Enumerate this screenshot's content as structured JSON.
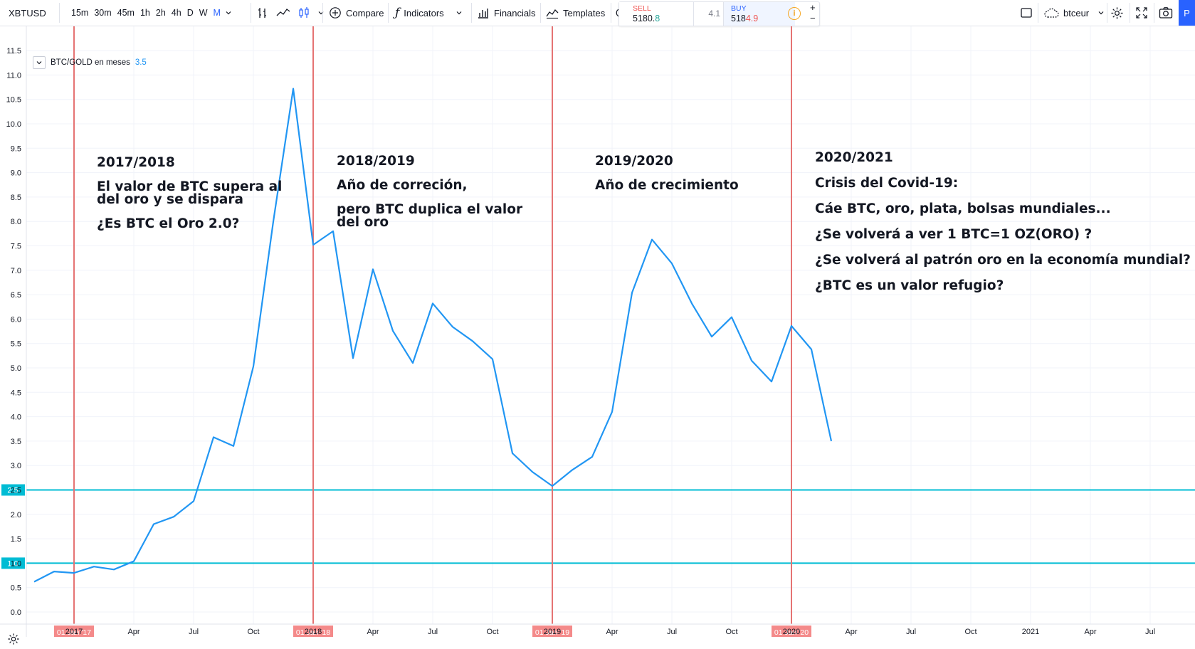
{
  "toolbar": {
    "symbol": "XBTUSD",
    "intervals": [
      "15m",
      "30m",
      "45m",
      "1h",
      "2h",
      "4h",
      "D",
      "W",
      "M"
    ],
    "active_interval": "M",
    "compare_label": "Compare",
    "indicators_label": "Indicators",
    "financials_label": "Financials",
    "templates_label": "Templates",
    "sell_label": "SELL",
    "sell_price_main": "5180.",
    "sell_price_frac": "8",
    "spread": "4.1",
    "buy_label": "BUY",
    "buy_price_main": "518",
    "buy_price_frac": "4.9",
    "plus": "+",
    "minus": "−",
    "layout_name": "btceur",
    "publish_label": "P",
    "colors": {
      "sell": "#ef5350",
      "buy": "#2962ff",
      "accent": "#2962ff",
      "warning": "#f5a623"
    }
  },
  "legend": {
    "title": "BTC/GOLD en meses",
    "value": "3.5",
    "value_color": "#2196f3"
  },
  "annotations": [
    {
      "title": "2017/2018",
      "lines": [
        "El valor de BTC supera al",
        "del oro y se dispara",
        "¿Es BTC el Oro 2.0?"
      ]
    },
    {
      "title": "2018/2019",
      "lines": [
        "Año de correción,",
        "pero BTC duplica el valor",
        "del oro"
      ]
    },
    {
      "title": "2019/2020",
      "lines": [
        "Año de crecimiento"
      ]
    },
    {
      "title": "2020/2021",
      "lines": [
        "Crisis del Covid-19:",
        "Cáe BTC, oro, plata, bolsas mundiales...",
        "¿Se volverá a ver 1 BTC=1 OZ(ORO) ?",
        "¿Se volverá al patrón oro en la economía mundial?",
        "¿BTC es un valor refugio?"
      ]
    }
  ],
  "chart_data": {
    "type": "line",
    "series": [
      {
        "name": "BTC/GOLD en meses",
        "color": "#2196f3",
        "x": [
          "2016-11",
          "2016-12",
          "2017-01",
          "2017-02",
          "2017-03",
          "2017-04",
          "2017-05",
          "2017-06",
          "2017-07",
          "2017-08",
          "2017-09",
          "2017-10",
          "2017-11",
          "2017-12",
          "2018-01",
          "2018-02",
          "2018-03",
          "2018-04",
          "2018-05",
          "2018-06",
          "2018-07",
          "2018-08",
          "2018-09",
          "2018-10",
          "2018-11",
          "2018-12",
          "2019-01",
          "2019-02",
          "2019-03",
          "2019-04",
          "2019-05",
          "2019-06",
          "2019-07",
          "2019-08",
          "2019-09",
          "2019-10",
          "2019-11",
          "2019-12",
          "2020-01",
          "2020-02",
          "2020-03"
        ],
        "values": [
          0.62,
          0.83,
          0.8,
          0.93,
          0.87,
          1.04,
          1.8,
          1.95,
          2.27,
          3.58,
          3.4,
          5.03,
          8.0,
          10.72,
          7.52,
          7.8,
          5.2,
          7.02,
          5.76,
          5.1,
          6.32,
          5.84,
          5.55,
          5.18,
          3.25,
          2.87,
          2.58,
          2.91,
          3.18,
          4.1,
          6.54,
          7.63,
          7.14,
          6.32,
          5.64,
          6.04,
          5.15,
          4.72,
          5.86,
          5.38,
          3.5
        ]
      }
    ],
    "horizontal_lines": [
      {
        "value": 2.5,
        "label": "2.5",
        "color": "#00bcd4"
      },
      {
        "value": 1.0,
        "label": "1.0",
        "color": "#00bcd4"
      }
    ],
    "vertical_markers": [
      {
        "date": "2017-01",
        "label": "01 Jan '17",
        "color": "#e57373"
      },
      {
        "date": "2018-01",
        "label": "01 Jan '18",
        "color": "#e57373"
      },
      {
        "date": "2019-01",
        "label": "01 Jan '19",
        "color": "#e57373"
      },
      {
        "date": "2020-01",
        "label": "01 Jan '20",
        "color": "#e57373"
      }
    ],
    "y_ticks": [
      "0.0",
      "0.5",
      "1.0",
      "1.5",
      "2.0",
      "2.5",
      "3.0",
      "3.5",
      "4.0",
      "4.5",
      "5.0",
      "5.5",
      "6.0",
      "6.5",
      "7.0",
      "7.5",
      "8.0",
      "8.5",
      "9.0",
      "9.5",
      "10.0",
      "10.5",
      "11.0",
      "11.5"
    ],
    "x_ticks": [
      {
        "date": "2017-01",
        "label": "2017"
      },
      {
        "date": "2017-04",
        "label": "Apr"
      },
      {
        "date": "2017-07",
        "label": "Jul"
      },
      {
        "date": "2017-10",
        "label": "Oct"
      },
      {
        "date": "2018-01",
        "label": "2018"
      },
      {
        "date": "2018-04",
        "label": "Apr"
      },
      {
        "date": "2018-07",
        "label": "Jul"
      },
      {
        "date": "2018-10",
        "label": "Oct"
      },
      {
        "date": "2019-01",
        "label": "2019"
      },
      {
        "date": "2019-04",
        "label": "Apr"
      },
      {
        "date": "2019-07",
        "label": "Jul"
      },
      {
        "date": "2019-10",
        "label": "Oct"
      },
      {
        "date": "2020-01",
        "label": "2020"
      },
      {
        "date": "2020-04",
        "label": "Apr"
      },
      {
        "date": "2020-07",
        "label": "Jul"
      },
      {
        "date": "2020-10",
        "label": "Oct"
      },
      {
        "date": "2021-01",
        "label": "2021"
      },
      {
        "date": "2021-04",
        "label": "Apr"
      },
      {
        "date": "2021-07",
        "label": "Jul"
      }
    ],
    "ylim": [
      -0.4,
      12.0
    ],
    "grid": true
  }
}
